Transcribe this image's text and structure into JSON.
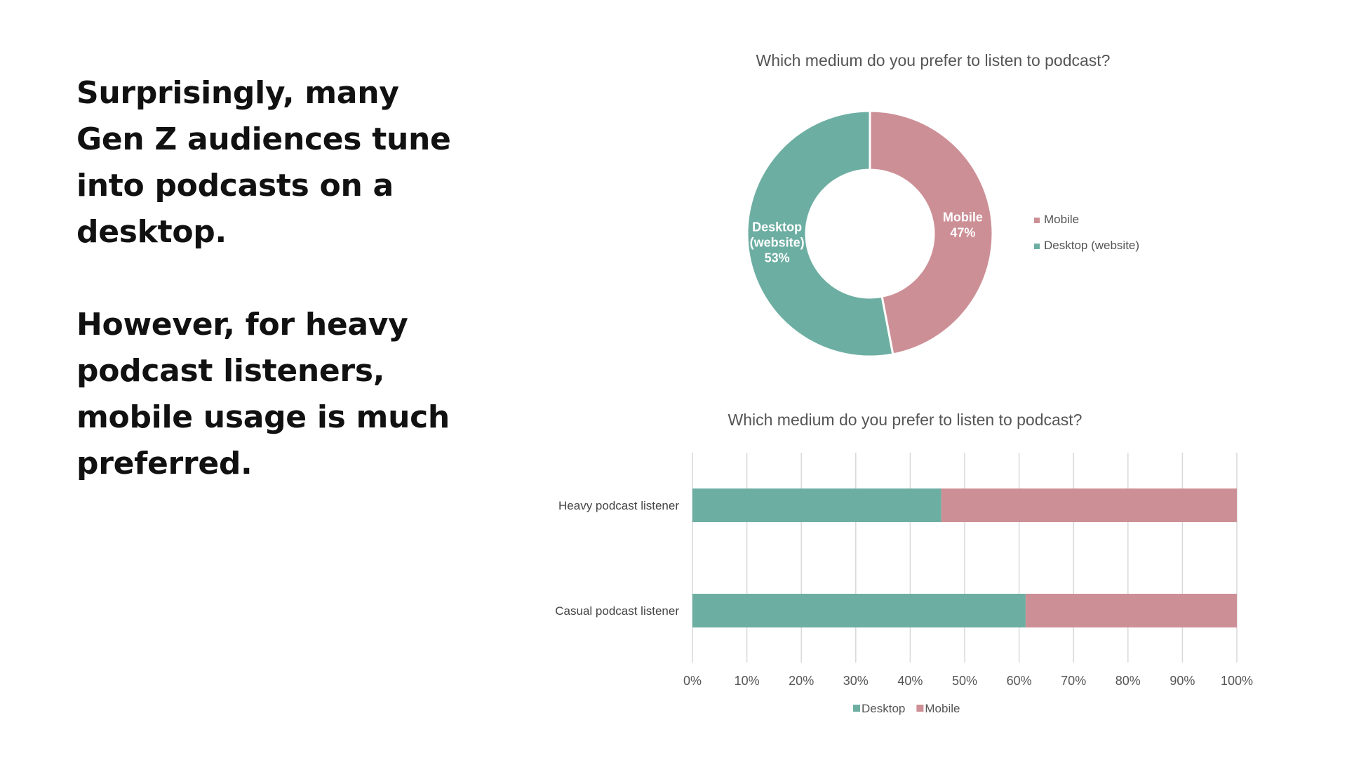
{
  "narrative": {
    "paragraph_1": "Surprisingly, many Gen Z audiences tune into podcasts on a desktop.",
    "paragraph_2": "However, for heavy podcast listeners, mobile usage is much preferred."
  },
  "colors": {
    "desktop": "#6daea2",
    "mobile": "#cd8f96",
    "grid": "#d9d9d9",
    "text": "#555555"
  },
  "chart_data": [
    {
      "type": "pie",
      "subtype": "donut",
      "title": "Which medium do you prefer to listen to podcast?",
      "slices": [
        {
          "name": "Mobile",
          "value": 47,
          "label_lines": [
            "Mobile",
            "47%"
          ],
          "color": "#cd8f96"
        },
        {
          "name": "Desktop (website)",
          "value": 53,
          "label_lines": [
            "Desktop",
            "(website)",
            "53%"
          ],
          "color": "#6daea2"
        }
      ],
      "legend": {
        "placement": "right",
        "entries": [
          "Mobile",
          "Desktop (website)"
        ]
      }
    },
    {
      "type": "bar",
      "subtype": "stacked-100-horizontal",
      "title": "Which medium do you prefer to listen to podcast?",
      "categories": [
        "Heavy podcast listener",
        "Casual podcast listener"
      ],
      "series": [
        {
          "name": "Desktop",
          "values": [
            45.7,
            61.2
          ],
          "color": "#6daea2"
        },
        {
          "name": "Mobile",
          "values": [
            54.3,
            38.8
          ],
          "color": "#cd8f96"
        }
      ],
      "xlim": [
        0,
        100
      ],
      "x_ticks": [
        "0%",
        "10%",
        "20%",
        "30%",
        "40%",
        "50%",
        "60%",
        "70%",
        "80%",
        "90%",
        "100%"
      ],
      "grid": true,
      "legend": {
        "placement": "bottom",
        "entries": [
          "Desktop",
          "Mobile"
        ]
      }
    }
  ]
}
